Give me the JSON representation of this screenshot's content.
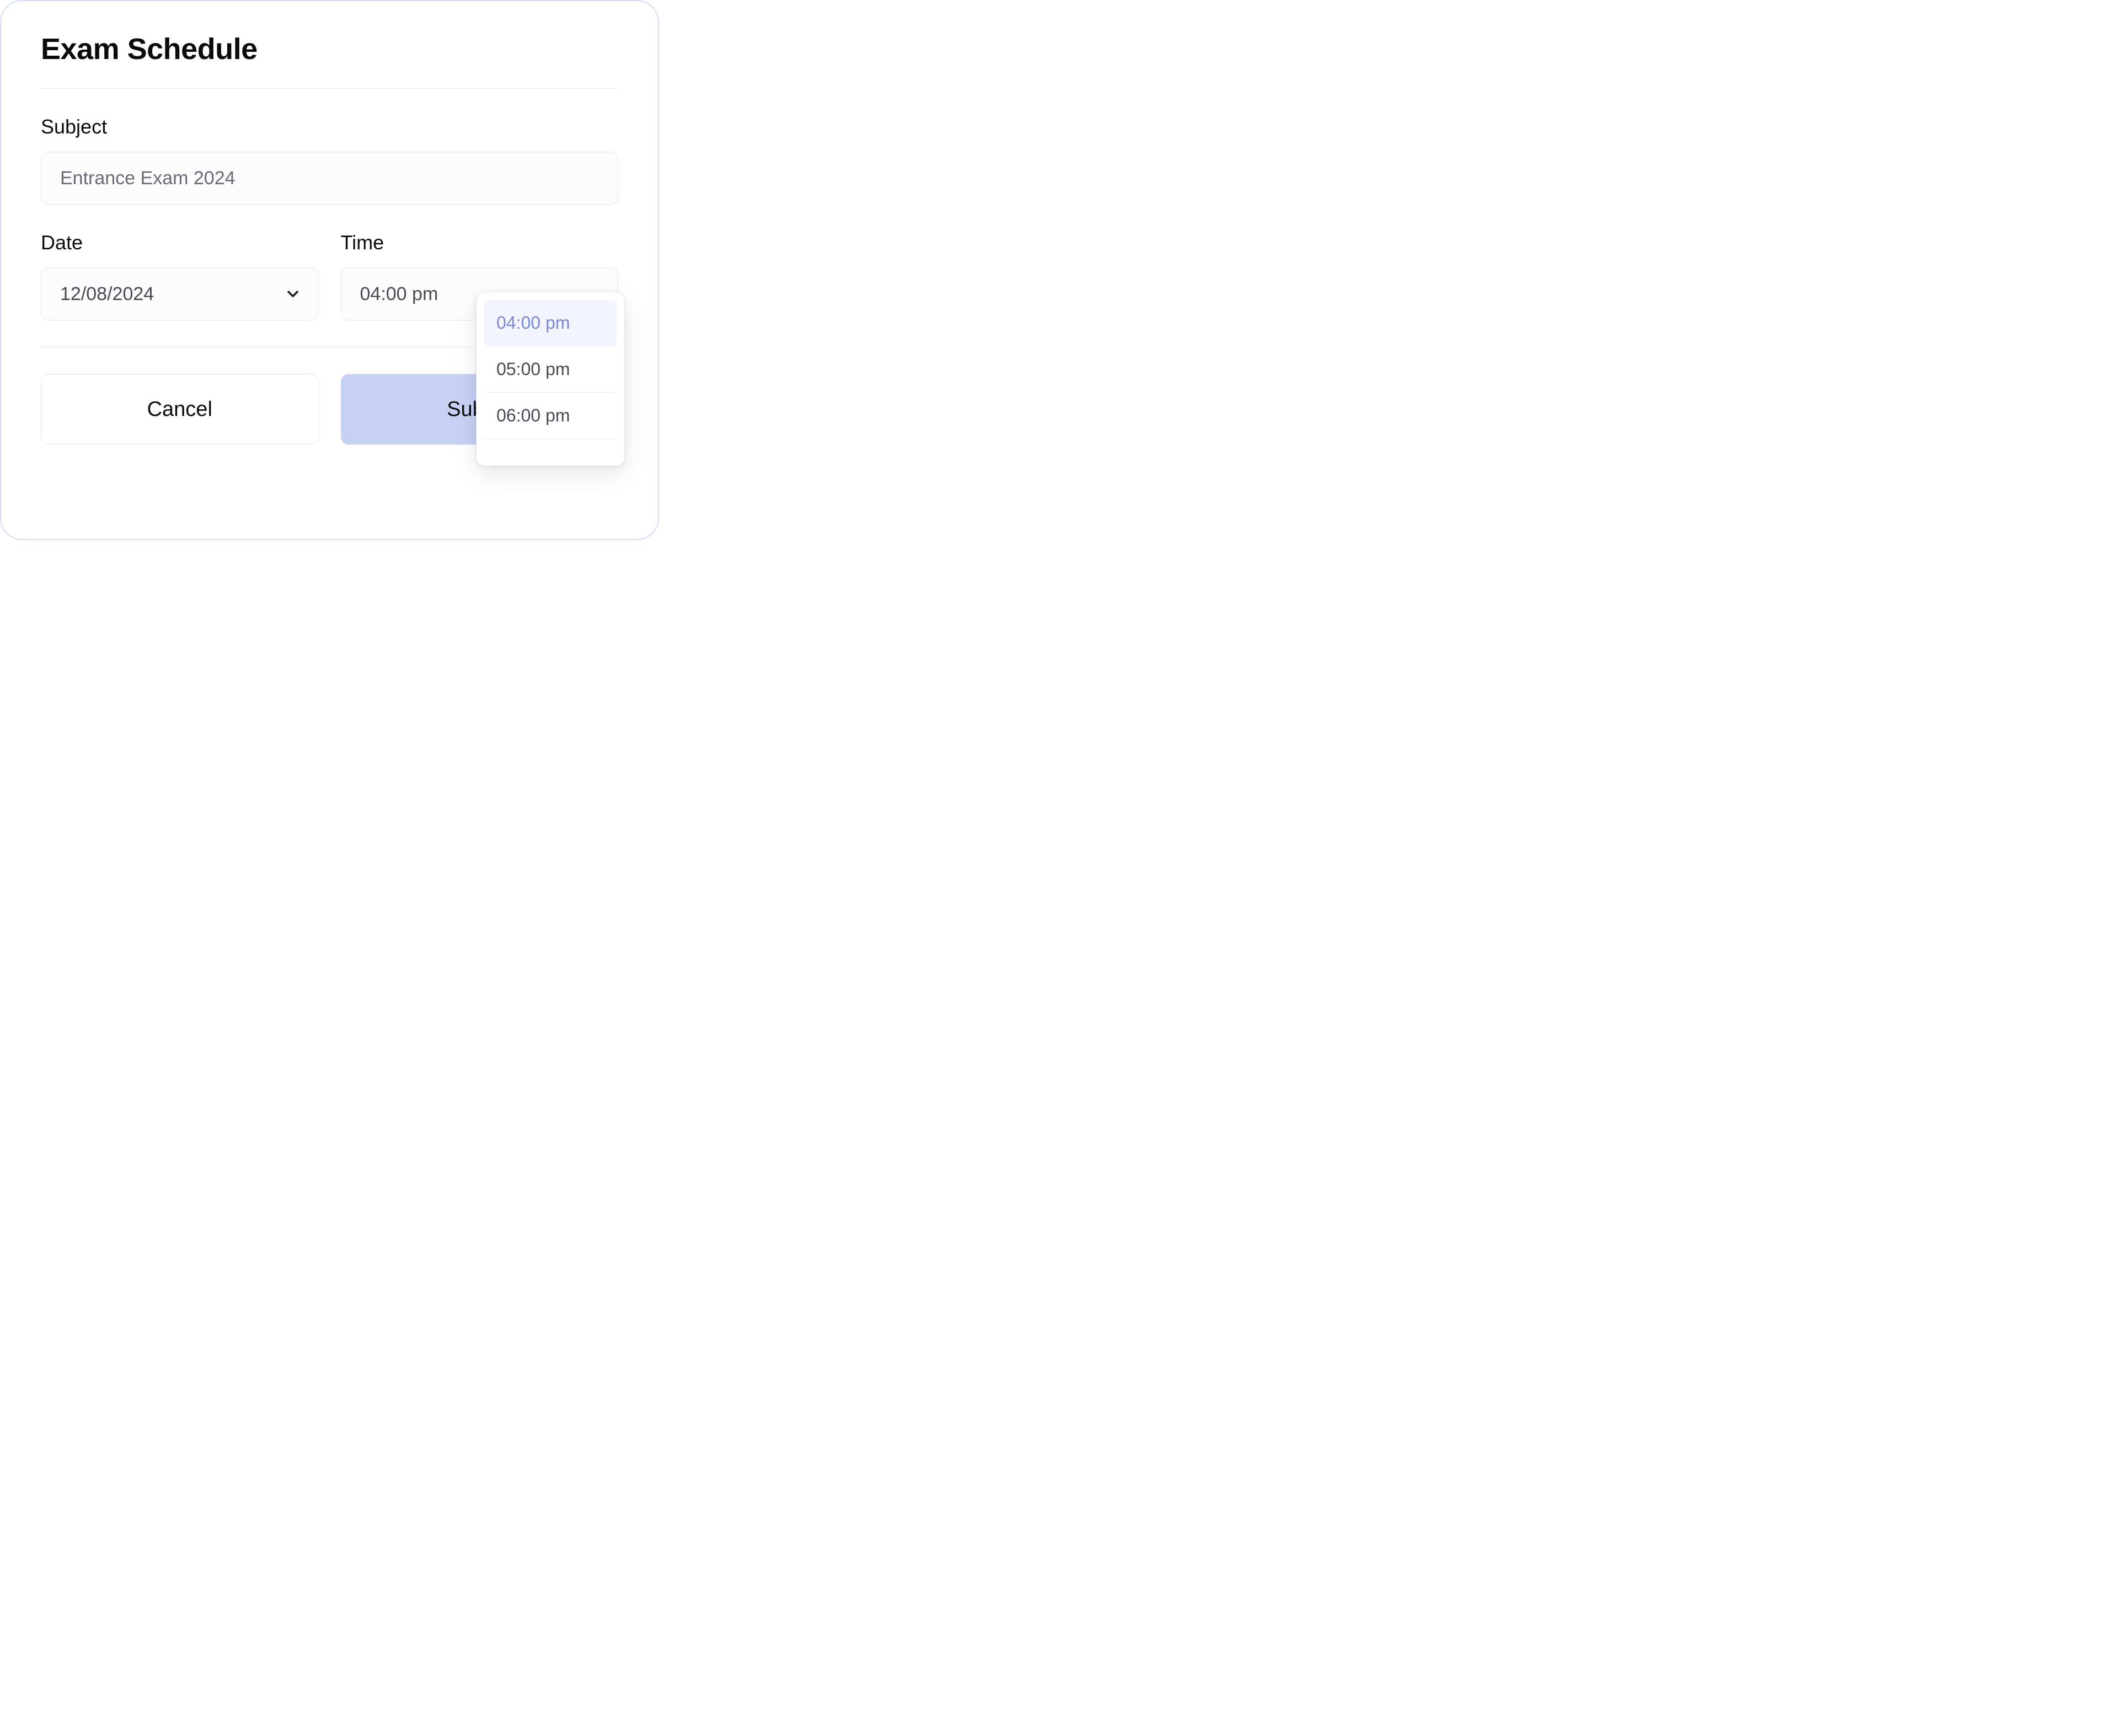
{
  "header": {
    "title": "Exam Schedule"
  },
  "subject": {
    "label": "Subject",
    "placeholder": "Entrance Exam 2024"
  },
  "date": {
    "label": "Date",
    "value": "12/08/2024"
  },
  "time": {
    "label": "Time",
    "value": "04:00 pm",
    "options": [
      "04:00 pm",
      "05:00 pm",
      "06:00 pm"
    ],
    "selected_index": 0
  },
  "actions": {
    "cancel": "Cancel",
    "submit": "Submit"
  },
  "colors": {
    "panel_border": "#d2dbf8",
    "accent": "#7c86d6",
    "accent_fill": "#c7d1f3",
    "highlight_bg": "#f3f5fe"
  }
}
